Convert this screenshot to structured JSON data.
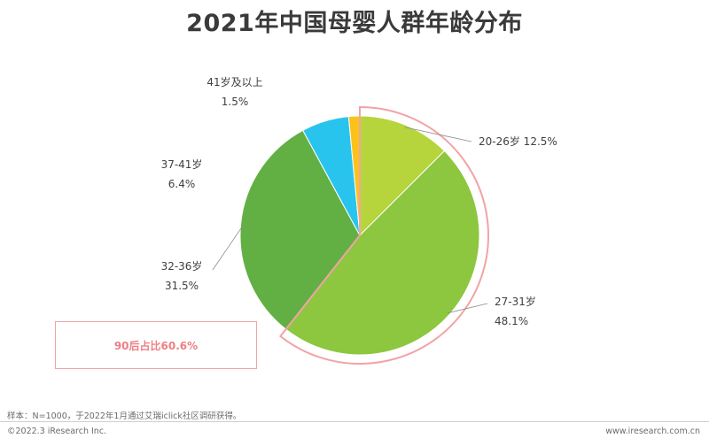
{
  "chart_data": {
    "type": "pie",
    "title": "2021年中国母婴人群年龄分布",
    "slices": [
      {
        "label": "20-26岁",
        "value": 12.5,
        "display": "12.5%",
        "color": "#b6d53c"
      },
      {
        "label": "27-31岁",
        "value": 48.1,
        "display": "48.1%",
        "color": "#8dc63f"
      },
      {
        "label": "32-36岁",
        "value": 31.5,
        "display": "31.5%",
        "color": "#62b044"
      },
      {
        "label": "37-41岁",
        "value": 6.4,
        "display": "6.4%",
        "color": "#29c4ee"
      },
      {
        "label": "41岁及以上",
        "value": 1.5,
        "display": "1.5%",
        "color": "#fbc21a"
      }
    ],
    "highlight": {
      "text": "90后占比60.6%",
      "slices": [
        "20-26岁",
        "27-31岁"
      ],
      "color": "#f2a3a5"
    }
  },
  "footer": {
    "note": "样本：N=1000，于2022年1月通过艾瑞iclick社区调研获得。",
    "copyright": "©2022.3 iResearch Inc.",
    "site": "www.iresearch.com.cn"
  }
}
